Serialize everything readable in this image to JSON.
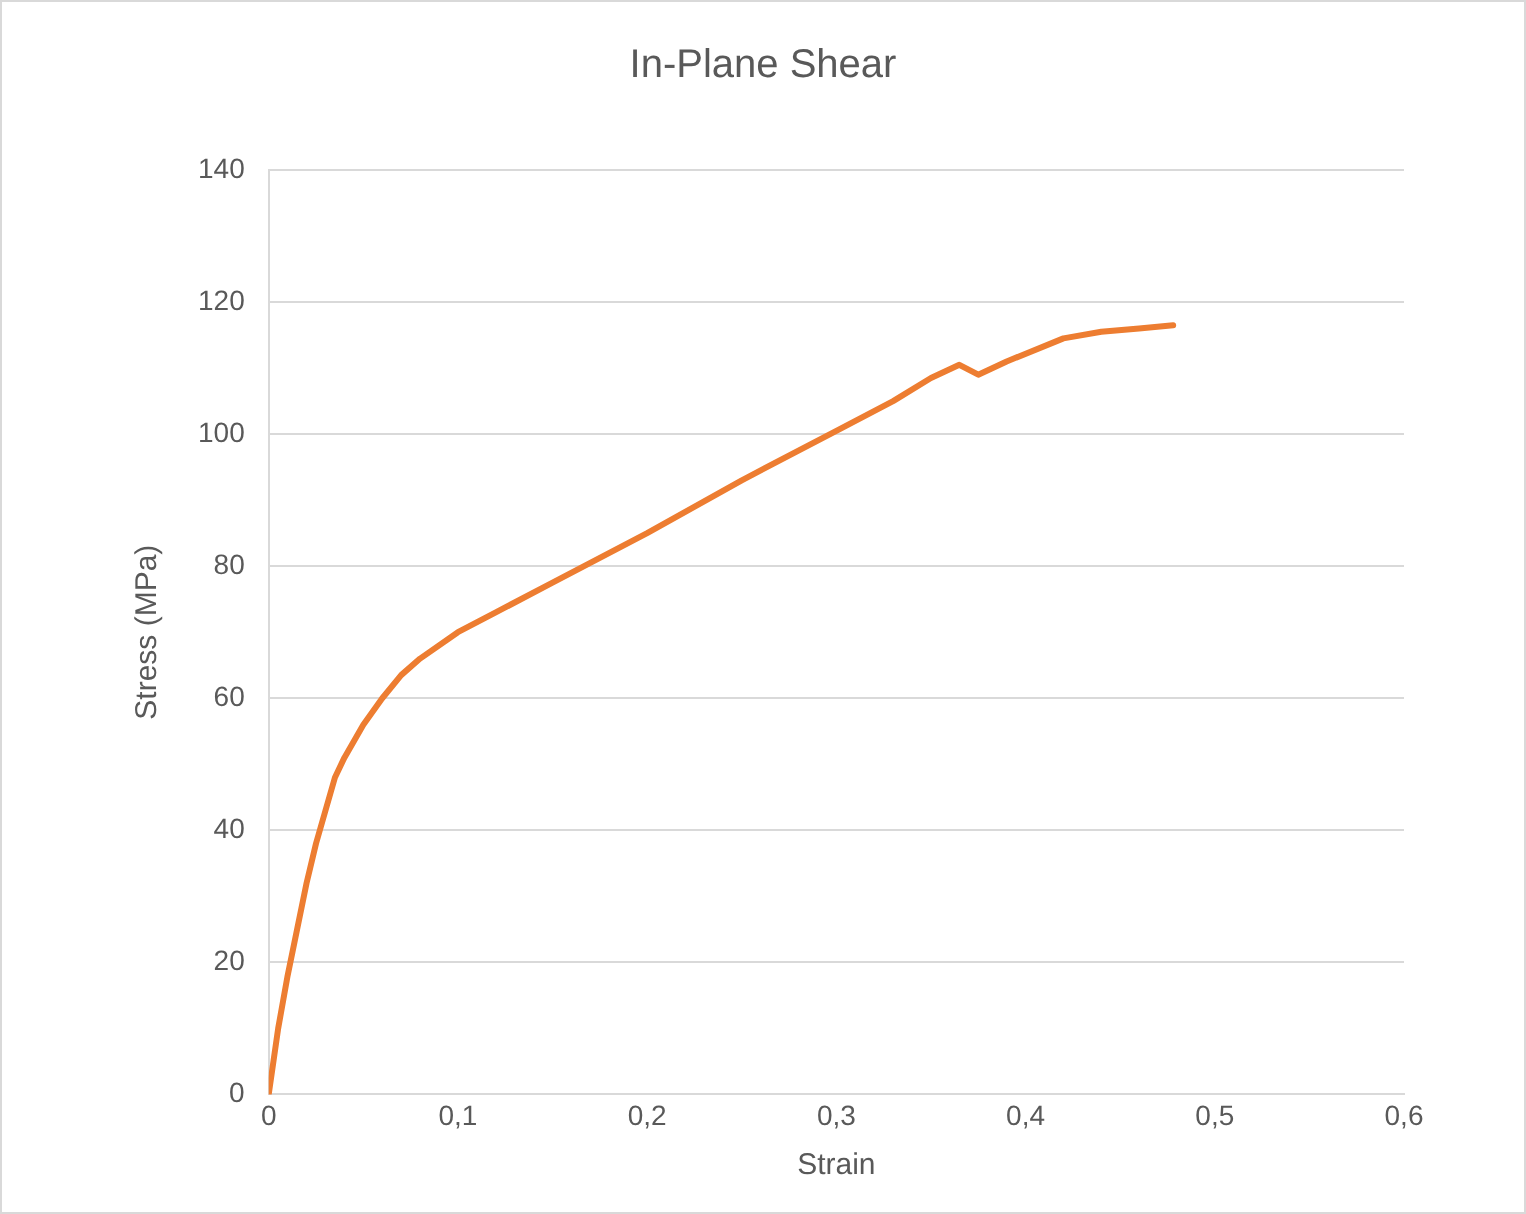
{
  "chart_data": {
    "type": "line",
    "title": "In-Plane Shear",
    "xlabel": "Strain",
    "ylabel": "Stress (MPa)",
    "x": [
      0,
      0.005,
      0.01,
      0.015,
      0.02,
      0.025,
      0.03,
      0.035,
      0.04,
      0.05,
      0.06,
      0.07,
      0.08,
      0.1,
      0.12,
      0.15,
      0.2,
      0.25,
      0.3,
      0.33,
      0.35,
      0.365,
      0.375,
      0.39,
      0.42,
      0.44,
      0.46,
      0.478
    ],
    "series": [
      {
        "color": "#ed7d31",
        "values": [
          0,
          10,
          18,
          25,
          32,
          38,
          43,
          48,
          51,
          56,
          60,
          63.5,
          66,
          70,
          73,
          77.5,
          85,
          93,
          100.5,
          105,
          108.5,
          110.5,
          109,
          111,
          114.5,
          115.5,
          116,
          116.5
        ]
      }
    ],
    "xlim": [
      0,
      0.6
    ],
    "xticks": [
      {
        "value": 0,
        "label": "0"
      },
      {
        "value": 0.1,
        "label": "0,1"
      },
      {
        "value": 0.2,
        "label": "0,2"
      },
      {
        "value": 0.3,
        "label": "0,3"
      },
      {
        "value": 0.4,
        "label": "0,4"
      },
      {
        "value": 0.5,
        "label": "0,5"
      },
      {
        "value": 0.6,
        "label": "0,6"
      }
    ],
    "ylim": [
      0,
      140
    ],
    "yticks": [
      0,
      20,
      40,
      60,
      80,
      100,
      120,
      140
    ],
    "grid": "y",
    "legend": false,
    "marker": "none",
    "line_style": "solid"
  }
}
